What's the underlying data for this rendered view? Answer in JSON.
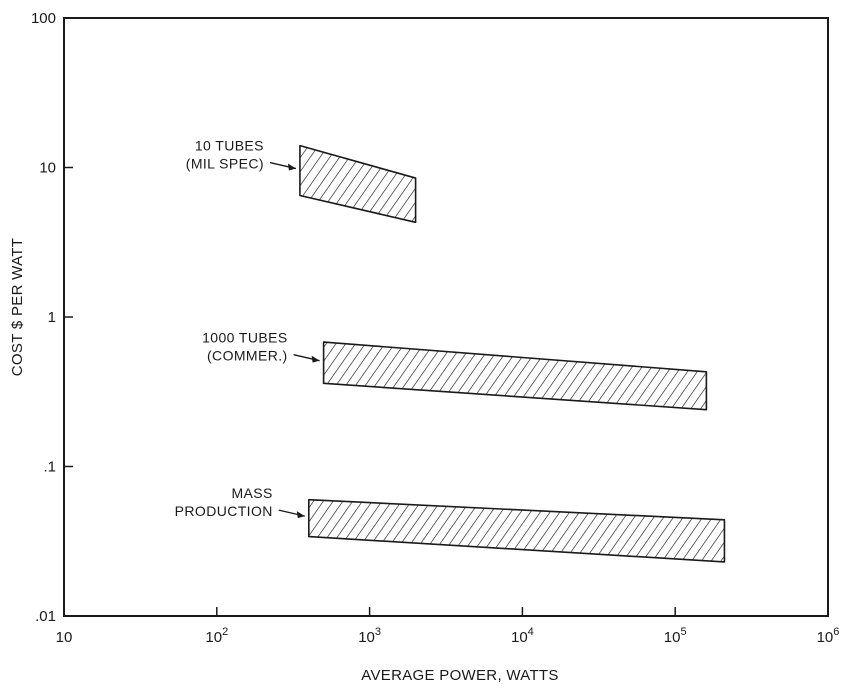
{
  "chart_data": {
    "type": "area",
    "title": "",
    "xlabel": "AVERAGE POWER, WATTS",
    "ylabel": "COST $ PER WATT",
    "xscale": "log",
    "yscale": "log",
    "xlim": [
      10,
      1000000
    ],
    "ylim": [
      0.01,
      100
    ],
    "grid": false,
    "x_ticks": [
      10,
      100,
      1000,
      10000,
      100000,
      1000000
    ],
    "x_tick_labels": [
      {
        "base": "10",
        "exp": ""
      },
      {
        "base": "10",
        "exp": "2"
      },
      {
        "base": "10",
        "exp": "3"
      },
      {
        "base": "10",
        "exp": "4"
      },
      {
        "base": "10",
        "exp": "5"
      },
      {
        "base": "10",
        "exp": "6"
      }
    ],
    "y_ticks": [
      0.01,
      0.1,
      1,
      10,
      100
    ],
    "y_tick_labels": [
      ".01",
      ".1",
      "1",
      "10",
      "100"
    ],
    "series": [
      {
        "name": "10 TUBES (MIL SPEC)",
        "label_lines": [
          "10 TUBES",
          "(MIL SPEC)"
        ],
        "x": [
          350,
          2000
        ],
        "upper": [
          14,
          8.5
        ],
        "lower": [
          6.5,
          4.3
        ]
      },
      {
        "name": "1000 TUBES (COMMER.)",
        "label_lines": [
          "1000 TUBES",
          "(COMMER.)"
        ],
        "x": [
          500,
          160000
        ],
        "upper": [
          0.68,
          0.43
        ],
        "lower": [
          0.36,
          0.24
        ]
      },
      {
        "name": "MASS PRODUCTION",
        "label_lines": [
          "MASS",
          "PRODUCTION"
        ],
        "x": [
          400,
          210000
        ],
        "upper": [
          0.06,
          0.044
        ],
        "lower": [
          0.034,
          0.023
        ]
      }
    ]
  }
}
